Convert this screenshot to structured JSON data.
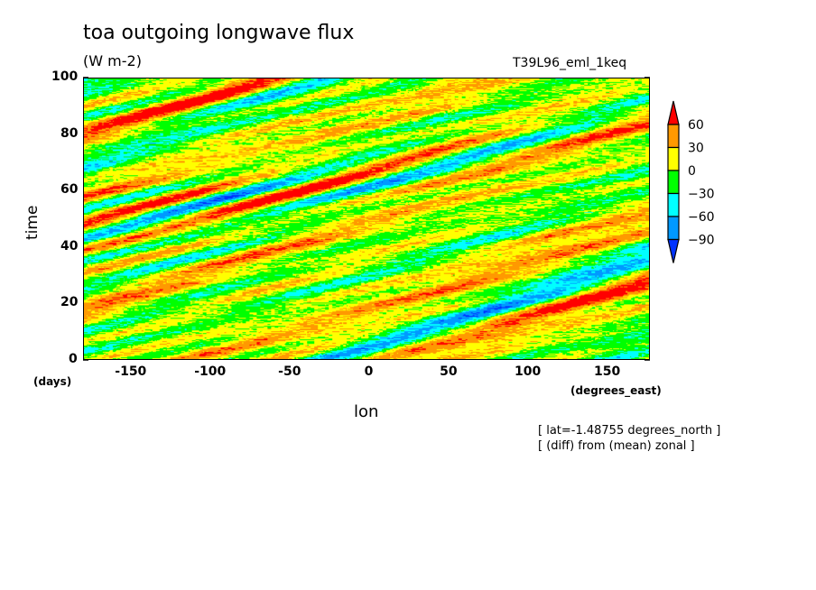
{
  "chart_data": {
    "type": "heatmap",
    "title": "toa outgoing longwave flux",
    "units": "(W m-2)",
    "run_label": "T39L96_eml_1keq",
    "xlabel": "lon",
    "xunit": "(degrees_east)",
    "ylabel": "time",
    "yunit": "(days)",
    "xlim": [
      -180,
      177
    ],
    "ylim": [
      0,
      100
    ],
    "xticks": [
      -150,
      -100,
      -50,
      0,
      50,
      100,
      150
    ],
    "yticks": [
      0,
      20,
      40,
      60,
      80,
      100
    ],
    "colorbar": {
      "levels": [
        -90,
        -60,
        -30,
        0,
        30,
        60
      ],
      "colors": [
        "#0033ff",
        "#0099ff",
        "#00ffff",
        "#00ff00",
        "#ffff00",
        "#ff9900",
        "#ff0000"
      ],
      "extend": "both"
    },
    "annotations": [
      "[ lat=-1.48755 degrees_north ]",
      "[ (diff) from (mean) zonal ]"
    ]
  }
}
